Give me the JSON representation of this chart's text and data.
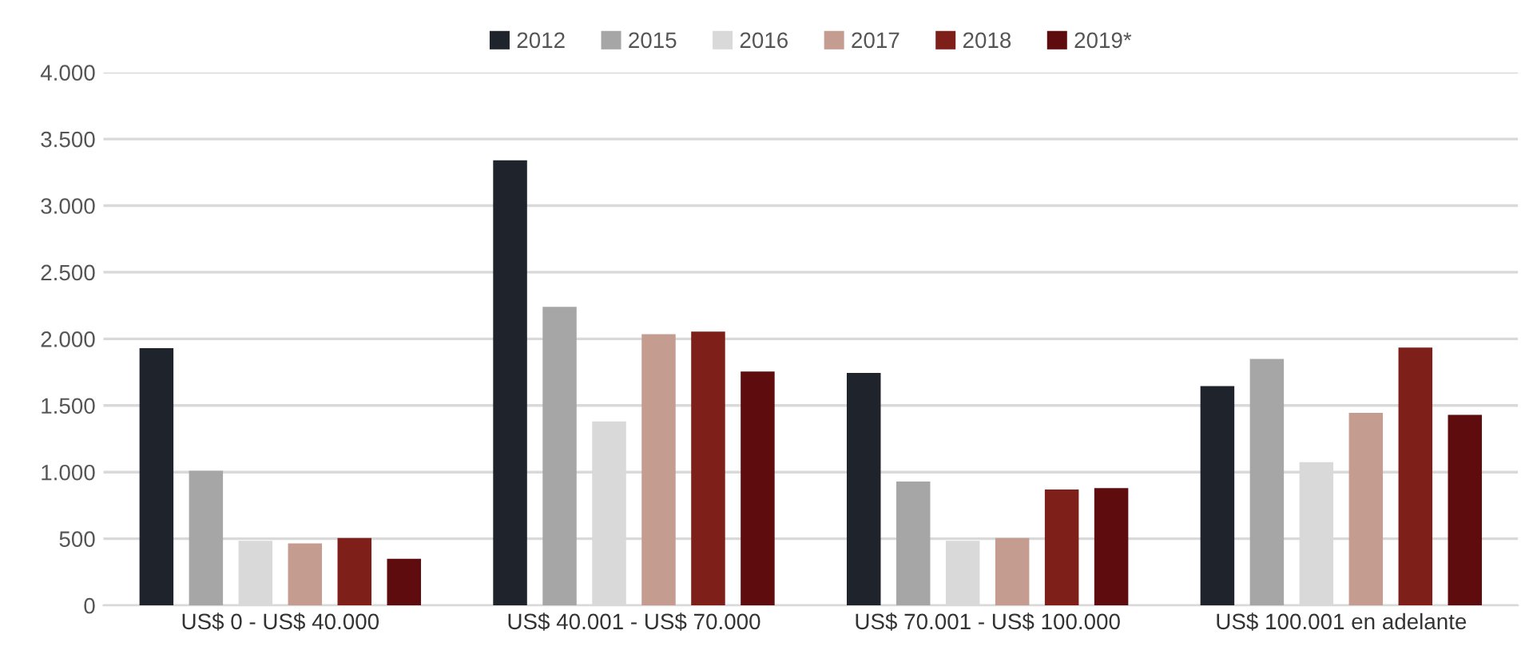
{
  "chart_data": {
    "type": "bar",
    "categories": [
      "US$ 0 - US$ 40.000",
      "US$ 40.001 - US$ 70.000",
      "US$ 70.001 - US$ 100.000",
      "US$ 100.001 en adelante"
    ],
    "series": [
      {
        "name": "2012",
        "color": "#1e232c",
        "values": [
          1930,
          3340,
          1745,
          1645
        ]
      },
      {
        "name": "2015",
        "color": "#a6a6a6",
        "values": [
          1010,
          2240,
          930,
          1850
        ]
      },
      {
        "name": "2016",
        "color": "#d9d9d9",
        "values": [
          485,
          1380,
          485,
          1075
        ]
      },
      {
        "name": "2017",
        "color": "#c49c90",
        "values": [
          465,
          2035,
          505,
          1445
        ]
      },
      {
        "name": "2018",
        "color": "#7f1f1a",
        "values": [
          505,
          2055,
          870,
          1935
        ]
      },
      {
        "name": "2019*",
        "color": "#5e0c0e",
        "values": [
          350,
          1755,
          880,
          1430
        ]
      }
    ],
    "ylim": [
      0,
      4000
    ],
    "yticks": [
      0,
      {
        "value": 500,
        "label": "500"
      },
      {
        "value": 1000,
        "label": "1.000"
      },
      {
        "value": 1500,
        "label": "1.500"
      },
      {
        "value": 2000,
        "label": "2.000"
      },
      {
        "value": 2500,
        "label": "2.500"
      },
      {
        "value": 3000,
        "label": "3.000"
      },
      {
        "value": 3500,
        "label": "3.500"
      },
      {
        "value": 4000,
        "label": "4.000"
      }
    ],
    "grid": "y",
    "legend": "top"
  }
}
